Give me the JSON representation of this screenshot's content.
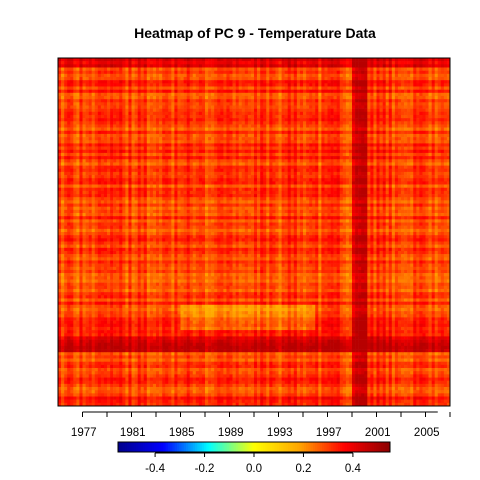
{
  "chart_data": {
    "type": "heatmap",
    "title": "Heatmap of PC 9  - Temperature Data",
    "xlabel": "",
    "ylabel": "",
    "x_start_year": 1975,
    "x_end_year": 2007,
    "x_tick_labels": [
      "1977",
      "1981",
      "1985",
      "1989",
      "1993",
      "1997",
      "2001",
      "2005"
    ],
    "x_tick_values": [
      1977,
      1981,
      1985,
      1989,
      1993,
      1997,
      2001,
      2005
    ],
    "n_rows": 110,
    "color_scale": {
      "min": -0.55,
      "max": 0.55,
      "tick_labels": [
        "-0.4",
        "-0.2",
        "0.0",
        "0.2",
        "0.4"
      ],
      "tick_values": [
        -0.4,
        -0.2,
        0.0,
        0.2,
        0.4
      ],
      "palette": [
        "#00008B",
        "#0000FF",
        "#00FFFF",
        "#FFFF00",
        "#FFA500",
        "#FF0000",
        "#8B0000"
      ]
    },
    "value_range_observed": [
      0.18,
      0.45
    ],
    "notes_visible": "values concentrated in yellow-orange-red (approx 0.2 to 0.45); strong red band near bottom rows; red column near 1999-2000"
  }
}
